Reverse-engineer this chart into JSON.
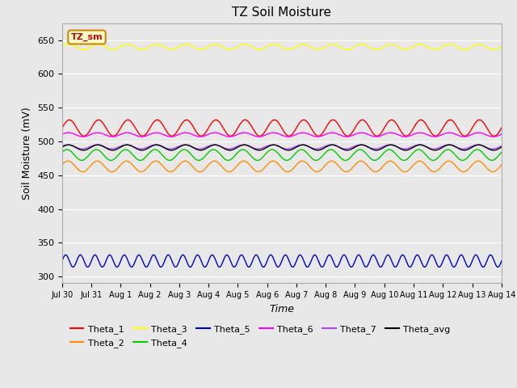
{
  "title": "TZ Soil Moisture",
  "xlabel": "Time",
  "ylabel": "Soil Moisture (mV)",
  "ylim": [
    290,
    675
  ],
  "xlim": [
    0,
    15
  ],
  "bg_color": "#e8e8e8",
  "fig_bg": "#e8e8e8",
  "grid_color": "#ffffff",
  "series": [
    {
      "name": "Theta_1",
      "color": "#ff0000",
      "base": 520,
      "amp": 12,
      "freq": 1.0,
      "phase": 0.0
    },
    {
      "name": "Theta_2",
      "color": "#ff8c00",
      "base": 463,
      "amp": 8,
      "freq": 1.0,
      "phase": 0.3
    },
    {
      "name": "Theta_3",
      "color": "#ffff00",
      "base": 640,
      "amp": 4,
      "freq": 1.0,
      "phase": 0.1
    },
    {
      "name": "Theta_4",
      "color": "#00cc00",
      "base": 480,
      "amp": 8,
      "freq": 1.0,
      "phase": 0.5
    },
    {
      "name": "Theta_5",
      "color": "#0000cc",
      "base": 323,
      "amp": 9,
      "freq": 2.0,
      "phase": 0.0
    },
    {
      "name": "Theta_6",
      "color": "#ff00ff",
      "base": 510,
      "amp": 3,
      "freq": 1.0,
      "phase": 0.2
    },
    {
      "name": "Theta_7",
      "color": "#aa44ff",
      "base": 492,
      "amp": 3,
      "freq": 1.0,
      "phase": 0.4
    },
    {
      "name": "Theta_avg",
      "color": "#000000",
      "base": 491,
      "amp": 4,
      "freq": 1.0,
      "phase": 0.15
    }
  ],
  "annotation_text": "TZ_sm",
  "xtick_labels": [
    "Jul 30",
    "Jul 31",
    "Aug 1",
    "Aug 2",
    "Aug 3",
    "Aug 4",
    "Aug 5",
    "Aug 6",
    "Aug 7",
    "Aug 8",
    "Aug 9",
    "Aug 10",
    "Aug 11",
    "Aug 12",
    "Aug 13",
    "Aug 14"
  ],
  "xtick_positions": [
    0,
    1,
    2,
    3,
    4,
    5,
    6,
    7,
    8,
    9,
    10,
    11,
    12,
    13,
    14,
    15
  ],
  "ytick_positions": [
    300,
    350,
    400,
    450,
    500,
    550,
    600,
    650
  ]
}
